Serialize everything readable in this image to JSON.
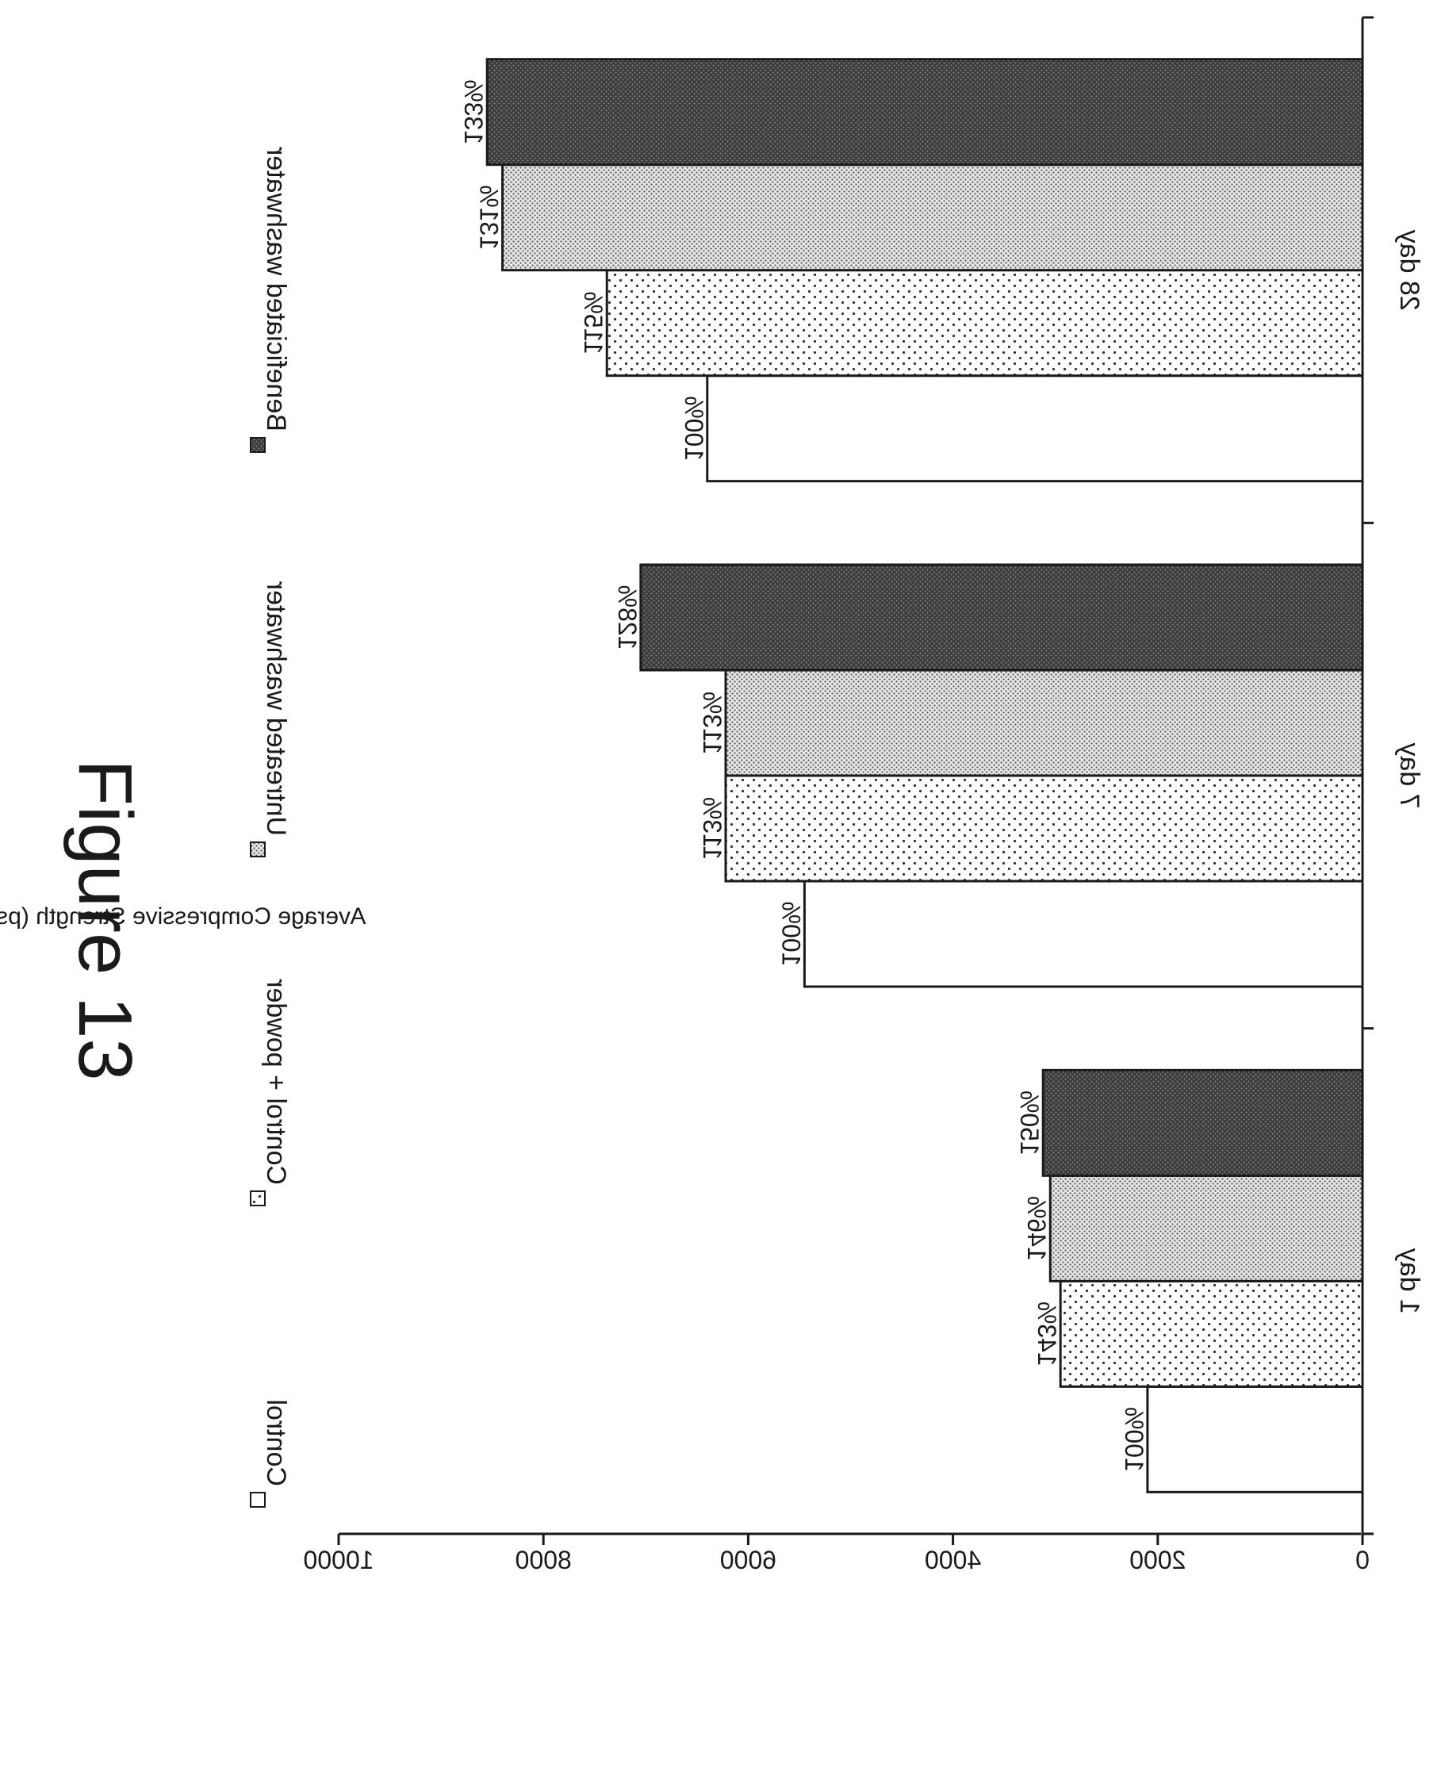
{
  "chart_data": {
    "type": "bar",
    "title": "Figure 13",
    "ylabel": "Average Compressive Strength (psi)",
    "xlabel": "",
    "ylim": [
      0,
      10000
    ],
    "yticks": [
      0,
      2000,
      4000,
      6000,
      8000,
      10000
    ],
    "orientation": "rotated 90° clockwise",
    "legend_position": "top",
    "categories": [
      "1 day",
      "7 day",
      "28 day"
    ],
    "series": [
      {
        "name": "Control",
        "values": [
          2100,
          5450,
          6400
        ],
        "labels": [
          "100%",
          "100%",
          "100%"
        ],
        "pattern": "white"
      },
      {
        "name": "Control + powder",
        "values": [
          2950,
          6220,
          7380
        ],
        "labels": [
          "143%",
          "113%",
          "115%"
        ],
        "pattern": "sparse-dots"
      },
      {
        "name": "Untreated washwater",
        "values": [
          3050,
          6220,
          8400
        ],
        "labels": [
          "146%",
          "113%",
          "131%"
        ],
        "pattern": "dense-dots"
      },
      {
        "name": "Beneficiated washwater",
        "values": [
          3120,
          7050,
          8550
        ],
        "labels": [
          "150%",
          "128%",
          "133%"
        ],
        "pattern": "dark-dots"
      }
    ]
  }
}
